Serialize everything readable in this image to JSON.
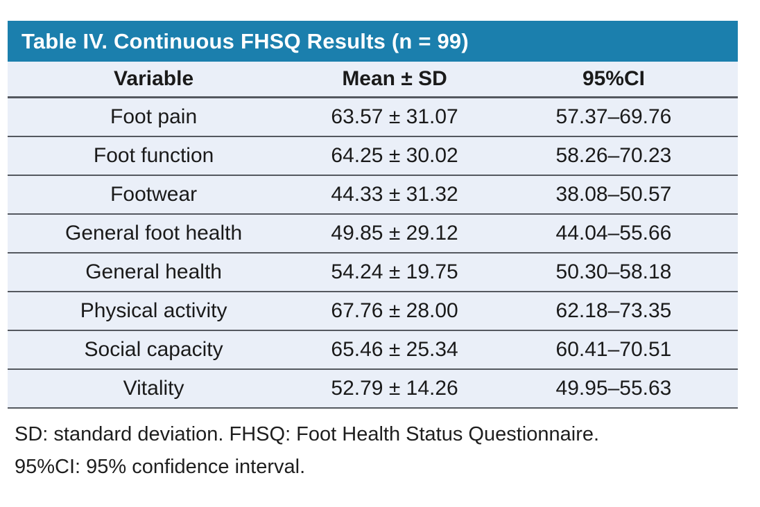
{
  "table": {
    "title": "Table IV. Continuous FHSQ Results (n = 99)",
    "columns": {
      "variable": "Variable",
      "mean_sd": "Mean ± SD",
      "ci": "95%CI"
    },
    "rows": [
      {
        "variable": "Foot pain",
        "mean_sd": "63.57 ± 31.07",
        "ci": "57.37–69.76"
      },
      {
        "variable": "Foot function",
        "mean_sd": "64.25 ± 30.02",
        "ci": "58.26–70.23"
      },
      {
        "variable": "Footwear",
        "mean_sd": "44.33 ± 31.32",
        "ci": "38.08–50.57"
      },
      {
        "variable": "General foot health",
        "mean_sd": "49.85 ± 29.12",
        "ci": "44.04–55.66"
      },
      {
        "variable": "General health",
        "mean_sd": "54.24 ± 19.75",
        "ci": "50.30–58.18"
      },
      {
        "variable": "Physical activity",
        "mean_sd": "67.76 ± 28.00",
        "ci": "62.18–73.35"
      },
      {
        "variable": "Social capacity",
        "mean_sd": "65.46 ± 25.34",
        "ci": "60.41–70.51"
      },
      {
        "variable": "Vitality",
        "mean_sd": "52.79 ± 14.26",
        "ci": "49.95–55.63"
      }
    ],
    "footnotes": [
      "SD: standard deviation. FHSQ: Foot Health Status Questionnaire.",
      "95%CI: 95% confidence interval."
    ],
    "colors": {
      "title_bar_bg": "#1B7FAD",
      "title_text": "#FFFFFF",
      "row_bg": "#EAEFF8",
      "rule": "#54585F",
      "body_text": "#1A1A1A"
    }
  }
}
